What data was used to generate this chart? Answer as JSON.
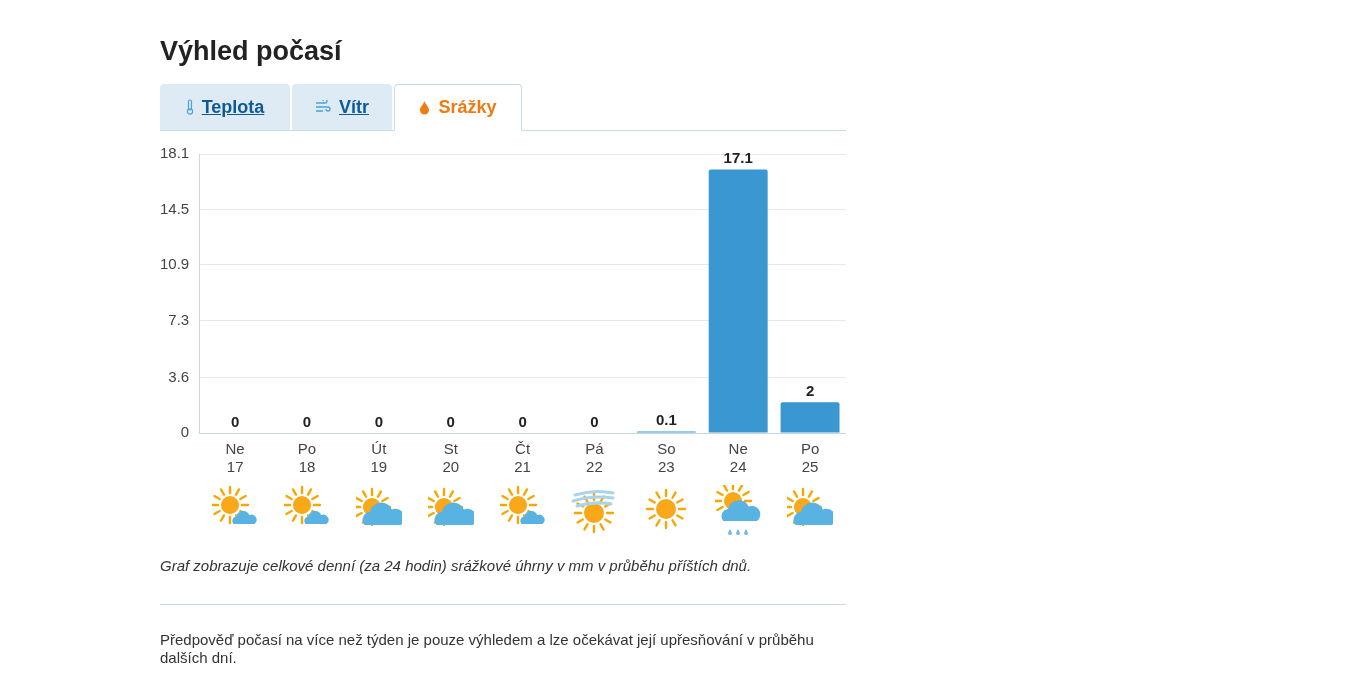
{
  "chart_data": {
    "type": "bar",
    "title": "Výhled počasí",
    "categories": [
      "Ne 17",
      "Po 18",
      "Út 19",
      "St 20",
      "Čt 21",
      "Pá 22",
      "So 23",
      "Ne 24",
      "Po 25"
    ],
    "values": [
      0,
      0,
      0,
      0,
      0,
      0,
      0.1,
      17.1,
      2
    ],
    "color": "#3a97d2",
    "ylim": [
      0,
      18.1
    ],
    "yticks": [
      0,
      3.6,
      7.3,
      10.9,
      14.5,
      18.1
    ],
    "grid": "y",
    "data_labels": true,
    "legend": false,
    "annotations": [
      "Teplota",
      "Vítr",
      "Srážky",
      "Graf zobrazuje celkové denní (za 24 hodin) srážkové úhrny v mm v průběhu příštích dnů.",
      "Předpověď počasí na více než týden je pouze výhledem a lze očekávat její upřesňování v průběhu dalších dní."
    ]
  }
}
